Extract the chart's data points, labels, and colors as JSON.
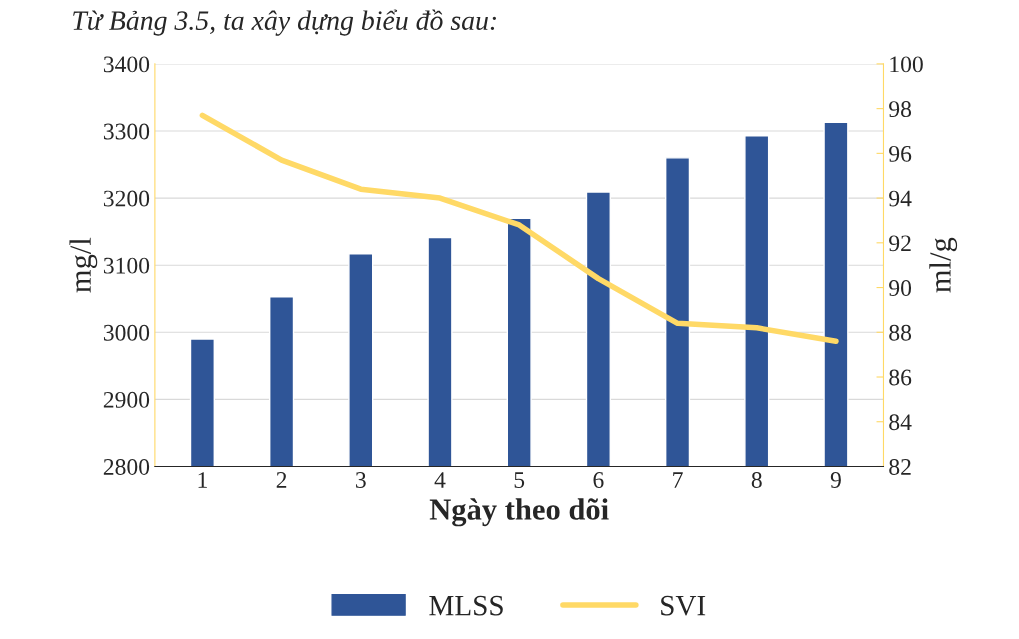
{
  "chart_data": {
    "type": "bar",
    "xlabel": "Ngày theo dõi",
    "ylabel": "mg/l",
    "y2label": "ml/g",
    "annotations": [
      "Từ Bảng 3.5, ta xây dựng biểu đồ sau:"
    ],
    "categories": [
      "1",
      "2",
      "3",
      "4",
      "5",
      "6",
      "7",
      "8",
      "9"
    ],
    "series": [
      {
        "name": "MLSS",
        "type": "bar",
        "color": "#2f5597",
        "values": [
          2990,
          3053,
          3117,
          3141,
          3170,
          3209,
          3260,
          3293,
          3313
        ]
      },
      {
        "name": "SVI",
        "type": "line",
        "axis": "y2",
        "color": "#ffd966",
        "values": [
          97.7,
          95.7,
          94.4,
          94.0,
          92.8,
          90.4,
          88.4,
          88.2,
          87.6
        ]
      }
    ],
    "ylim": [
      2800,
      3400
    ],
    "yticks": [
      2800,
      2900,
      3000,
      3100,
      3200,
      3300,
      3400
    ],
    "y2lim": [
      82,
      100
    ],
    "y2ticks": [
      82,
      84,
      86,
      88,
      90,
      92,
      94,
      96,
      98,
      100
    ],
    "grid": "y",
    "legend": "bottom",
    "marker": "none",
    "line_style": "solid"
  }
}
